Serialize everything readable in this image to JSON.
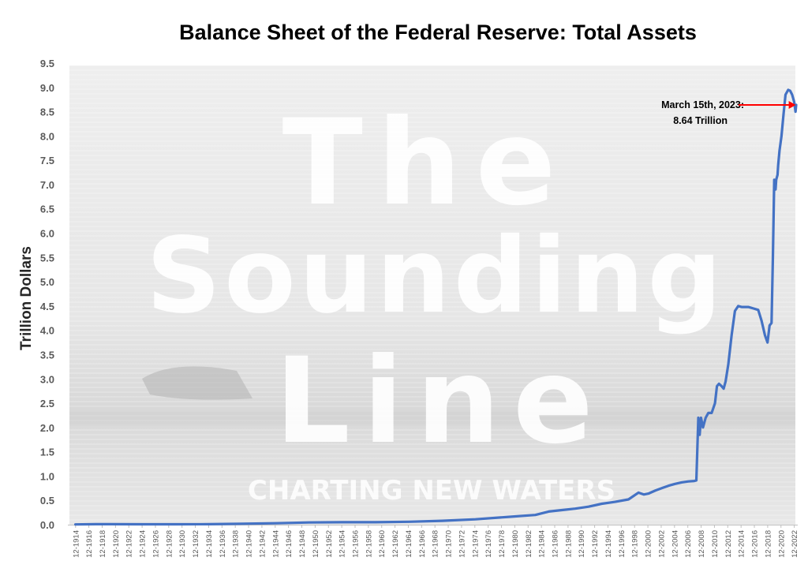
{
  "watermark": {
    "line1": "The",
    "line2": "Sounding",
    "line3": "Line",
    "tagline": "Charting new waters"
  },
  "chart_data": {
    "type": "line",
    "title": "Balance Sheet of the Federal Reserve: Total Assets",
    "xlabel": "",
    "ylabel": "Trillion Dollars",
    "ylim": [
      0,
      9.5
    ],
    "xlim": [
      1914,
      2023.2
    ],
    "yticks": [
      "0.0",
      "0.5",
      "1.0",
      "1.5",
      "2.0",
      "2.5",
      "3.0",
      "3.5",
      "4.0",
      "4.5",
      "5.0",
      "5.5",
      "6.0",
      "6.5",
      "7.0",
      "7.5",
      "8.0",
      "8.5",
      "9.0",
      "9.5"
    ],
    "xtick_labels": [
      "12-1914",
      "12-1916",
      "12-1918",
      "12-1920",
      "12-1922",
      "12-1924",
      "12-1926",
      "12-1928",
      "12-1930",
      "12-1932",
      "12-1934",
      "12-1936",
      "12-1938",
      "12-1940",
      "12-1942",
      "12-1944",
      "12-1946",
      "12-1948",
      "12-1950",
      "12-1952",
      "12-1954",
      "12-1956",
      "12-1958",
      "12-1960",
      "12-1962",
      "12-1964",
      "12-1966",
      "12-1968",
      "12-1970",
      "12-1972",
      "12-1974",
      "12-1976",
      "12-1978",
      "12-1980",
      "12-1982",
      "12-1984",
      "12-1986",
      "12-1988",
      "12-1990",
      "12-1992",
      "12-1994",
      "12-1996",
      "12-1998",
      "12-2000",
      "12-2002",
      "12-2004",
      "12-2006",
      "12-2008",
      "12-2010",
      "12-2012",
      "12-2014",
      "12-2016",
      "12-2018",
      "12-2020",
      "12-2022"
    ],
    "grid": false,
    "legend": "none",
    "line_color": "#4472C4",
    "annotation": {
      "line1": "March  15th, 2023:",
      "line2": "8.64 Trillion",
      "arrow_color": "#FF0000",
      "x": 2023.15,
      "y": 8.64
    },
    "series": [
      {
        "name": "",
        "x": [
          1914.9,
          1918,
          1920,
          1925,
          1930,
          1935,
          1940,
          1945,
          1950,
          1955,
          1960,
          1965,
          1970,
          1975,
          1980,
          1984,
          1986,
          1988,
          1990,
          1992,
          1994,
          1996,
          1998,
          1999.5,
          2000.3,
          2001,
          2002,
          2003,
          2004,
          2005,
          2006,
          2007,
          2007.9,
          2008.2,
          2008.5,
          2008.7,
          2008.9,
          2009.2,
          2009.6,
          2010,
          2010.5,
          2011,
          2011.3,
          2011.6,
          2012,
          2012.3,
          2012.6,
          2013,
          2013.5,
          2014,
          2014.5,
          2015,
          2016,
          2016.8,
          2017.5,
          2018,
          2018.5,
          2018.9,
          2019.2,
          2019.5,
          2019.7,
          2019.9,
          2020.1,
          2020.2,
          2020.4,
          2020.5,
          2020.7,
          2021,
          2021.3,
          2021.6,
          2022,
          2022.3,
          2022.6,
          2022.9,
          2023.1,
          2023.2
        ],
        "y": [
          0.005,
          0.01,
          0.01,
          0.008,
          0.008,
          0.01,
          0.02,
          0.03,
          0.045,
          0.05,
          0.05,
          0.06,
          0.08,
          0.11,
          0.16,
          0.2,
          0.27,
          0.3,
          0.33,
          0.37,
          0.43,
          0.47,
          0.52,
          0.66,
          0.62,
          0.64,
          0.7,
          0.75,
          0.8,
          0.84,
          0.87,
          0.89,
          0.9,
          0.91,
          2.2,
          1.85,
          2.2,
          2.0,
          2.2,
          2.3,
          2.3,
          2.5,
          2.85,
          2.9,
          2.85,
          2.8,
          2.95,
          3.3,
          3.9,
          4.4,
          4.5,
          4.48,
          4.48,
          4.45,
          4.42,
          4.2,
          3.9,
          3.75,
          4.1,
          4.15,
          5.5,
          7.1,
          6.9,
          7.1,
          7.2,
          7.4,
          7.7,
          8.0,
          8.45,
          8.85,
          8.95,
          8.93,
          8.85,
          8.7,
          8.5,
          8.64
        ]
      }
    ]
  }
}
